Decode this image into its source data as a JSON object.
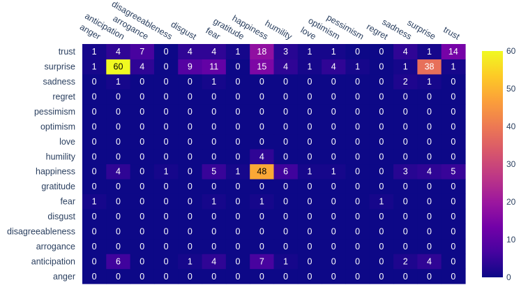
{
  "chart_data": {
    "type": "heatmap",
    "title": "",
    "xlabel": "",
    "ylabel": "",
    "x_categories": [
      "anger",
      "anticipation",
      "arrogance",
      "disagreeableness",
      "disgust",
      "fear",
      "gratitude",
      "happiness",
      "humility",
      "love",
      "optimism",
      "pessimism",
      "regret",
      "sadness",
      "surprise",
      "trust"
    ],
    "y_categories": [
      "anger",
      "anticipation",
      "arrogance",
      "disagreeableness",
      "disgust",
      "fear",
      "gratitude",
      "happiness",
      "humility",
      "love",
      "optimism",
      "pessimism",
      "regret",
      "sadness",
      "surprise",
      "trust"
    ],
    "z": [
      [
        0,
        0,
        0,
        0,
        0,
        0,
        0,
        0,
        0,
        0,
        0,
        0,
        0,
        0,
        0,
        0
      ],
      [
        0,
        6,
        0,
        0,
        1,
        4,
        0,
        7,
        1,
        0,
        0,
        0,
        0,
        2,
        4,
        0
      ],
      [
        0,
        0,
        0,
        0,
        0,
        0,
        0,
        0,
        0,
        0,
        0,
        0,
        0,
        0,
        0,
        0
      ],
      [
        0,
        0,
        0,
        0,
        0,
        0,
        0,
        0,
        0,
        0,
        0,
        0,
        0,
        0,
        0,
        0
      ],
      [
        0,
        0,
        0,
        0,
        0,
        0,
        0,
        0,
        0,
        0,
        0,
        0,
        0,
        0,
        0,
        0
      ],
      [
        1,
        0,
        0,
        0,
        0,
        1,
        0,
        1,
        0,
        0,
        0,
        0,
        1,
        0,
        0,
        0
      ],
      [
        0,
        0,
        0,
        0,
        0,
        0,
        0,
        0,
        0,
        0,
        0,
        0,
        0,
        0,
        0,
        0
      ],
      [
        0,
        4,
        0,
        1,
        0,
        5,
        1,
        48,
        6,
        1,
        1,
        0,
        0,
        3,
        4,
        5
      ],
      [
        0,
        0,
        0,
        0,
        0,
        0,
        0,
        4,
        0,
        0,
        0,
        0,
        0,
        0,
        0,
        0
      ],
      [
        0,
        0,
        0,
        0,
        0,
        0,
        0,
        0,
        0,
        0,
        0,
        0,
        0,
        0,
        0,
        0
      ],
      [
        0,
        0,
        0,
        0,
        0,
        0,
        0,
        0,
        0,
        0,
        0,
        0,
        0,
        0,
        0,
        0
      ],
      [
        0,
        0,
        0,
        0,
        0,
        0,
        0,
        0,
        0,
        0,
        0,
        0,
        0,
        0,
        0,
        0
      ],
      [
        0,
        0,
        0,
        0,
        0,
        0,
        0,
        0,
        0,
        0,
        0,
        0,
        0,
        0,
        0,
        0
      ],
      [
        0,
        1,
        0,
        0,
        0,
        1,
        0,
        0,
        0,
        0,
        0,
        0,
        0,
        2,
        1,
        0
      ],
      [
        1,
        60,
        4,
        0,
        9,
        11,
        0,
        15,
        4,
        1,
        4,
        1,
        0,
        1,
        38,
        1
      ],
      [
        1,
        4,
        7,
        0,
        4,
        4,
        1,
        18,
        3,
        1,
        1,
        0,
        0,
        4,
        1,
        14
      ]
    ],
    "colorscale": "plasma",
    "zmin": 0,
    "zmax": 60,
    "colorbar_ticks": [
      0,
      10,
      20,
      30,
      40,
      50,
      60
    ],
    "colorbar_ticklabels": [
      "0",
      "10",
      "20",
      "30",
      "40",
      "50",
      "60"
    ],
    "grid": false,
    "legend": "colorbar-right"
  }
}
